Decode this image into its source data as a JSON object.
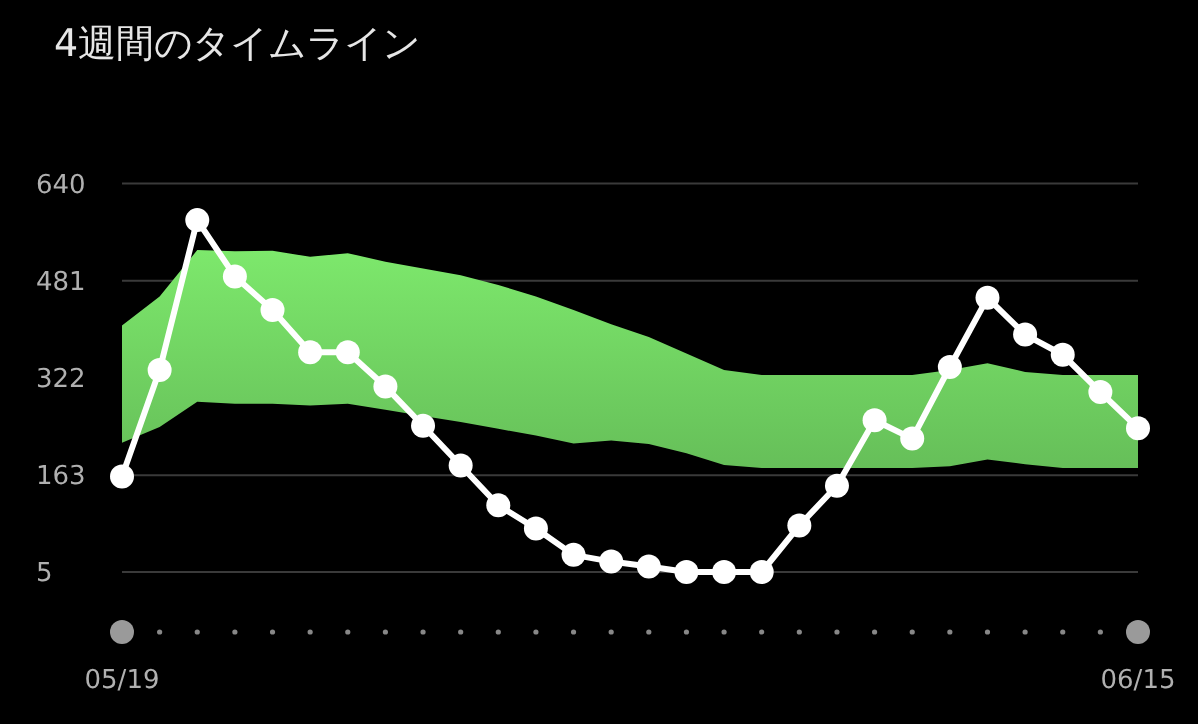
{
  "chart_data": {
    "type": "line",
    "title": "4週間のタイムライン",
    "categories": [
      "05/19",
      null,
      null,
      null,
      null,
      null,
      null,
      null,
      null,
      null,
      null,
      null,
      null,
      null,
      null,
      null,
      null,
      null,
      null,
      null,
      null,
      null,
      null,
      null,
      null,
      null,
      null,
      "06/15"
    ],
    "ylim": [
      5,
      640
    ],
    "yticks": [
      5,
      163,
      322,
      481,
      640
    ],
    "grid": "y",
    "marker": "circle",
    "series": [
      {
        "color": "#ffffff",
        "values": [
          161,
          335,
          580,
          488,
          433,
          364,
          364,
          308,
          244,
          179,
          114,
          76,
          33,
          22,
          14,
          5,
          5,
          5,
          81,
          146,
          253,
          223,
          340,
          453,
          393,
          360,
          299,
          240
        ],
        "lower": [
          216,
          242,
          283,
          280,
          280,
          277,
          280,
          270,
          260,
          250,
          239,
          228,
          215,
          220,
          214,
          199,
          180,
          175,
          175,
          175,
          175,
          175,
          178,
          189,
          181,
          175,
          175,
          175
        ],
        "upper": [
          408,
          455,
          531,
          529,
          530,
          520,
          526,
          512,
          501,
          490,
          474,
          455,
          433,
          410,
          389,
          362,
          335,
          327,
          327,
          327,
          327,
          327,
          335,
          346,
          332,
          327,
          327,
          327
        ]
      }
    ]
  }
}
